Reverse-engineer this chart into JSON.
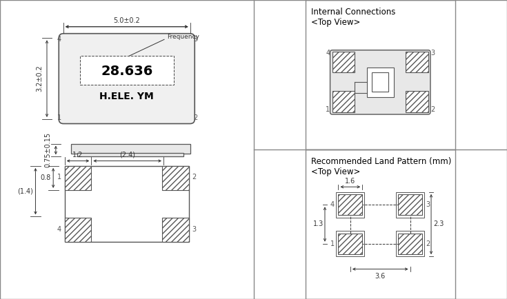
{
  "bg_color": "#ffffff",
  "line_color": "#555555",
  "hatch_color": "#555555",
  "fig_width": 7.35,
  "fig_height": 4.34,
  "title_top": "Internal Connections\n<Top View>",
  "title_bottom": "Recommended Land Pattern (mm)\n<Top View>",
  "freq_text": "28.636",
  "brand_text": "H.ELE. YM",
  "freq_label": "Frequency",
  "dim_top_width": "5.0±0.2",
  "dim_left_height": "3.2±0.2",
  "dim_side_height": "0.75±0.15",
  "dim_bot_w1": "1.2",
  "dim_bot_w2": "(2.4)",
  "dim_bot_h1": "0.8",
  "dim_bot_h2": "(1.4)",
  "dim_lp_width": "1.6",
  "dim_lp_spacing": "3.6",
  "dim_lp_height1": "1.3",
  "dim_lp_height2": "2.3"
}
